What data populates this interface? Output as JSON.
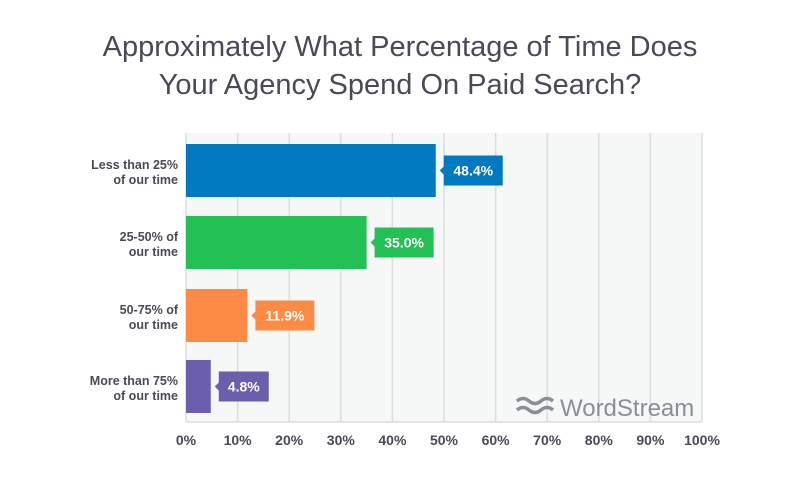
{
  "chart_data": {
    "type": "bar",
    "orientation": "horizontal",
    "title_lines": [
      "Approximately What Percentage of Time Does",
      "Your Agency Spend On Paid Search?"
    ],
    "categories": [
      [
        "Less than 25%",
        "of our time"
      ],
      [
        "25-50% of",
        "our time"
      ],
      [
        "50-75% of",
        "our time"
      ],
      [
        "More than 75%",
        "of our time"
      ]
    ],
    "values": [
      48.4,
      35.0,
      11.9,
      4.8
    ],
    "data_labels": [
      "48.4%",
      "35.0%",
      "11.9%",
      "4.8%"
    ],
    "colors": [
      "#0079c1",
      "#22c055",
      "#fd8a45",
      "#6b5fad"
    ],
    "xlim": [
      0,
      100
    ],
    "x_ticks": [
      "0%",
      "10%",
      "20%",
      "30%",
      "40%",
      "50%",
      "60%",
      "70%",
      "80%",
      "90%",
      "100%"
    ],
    "grid": true,
    "watermark": "WordStream"
  }
}
